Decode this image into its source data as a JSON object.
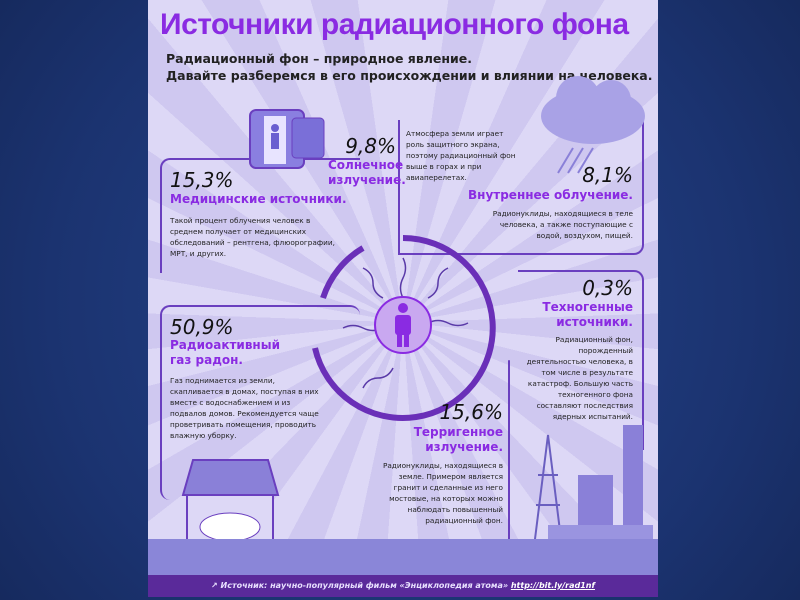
{
  "title": "Источники радиационного фона",
  "subtitle": [
    "Радиационный фон – природное явление.",
    "Давайте разберемся в его происхождении и влиянии на человека."
  ],
  "sections": {
    "medical": {
      "percent": "15,3%",
      "label": "Медицинские источники.",
      "text": "Такой процент облучения человек в среднем получает от медицинских обследований – рентгена, флюорографии, МРТ, и других."
    },
    "solar": {
      "percent": "9,8%",
      "label": "Солнечное излучение.",
      "text": "Атмосфера земли играет роль защитного экрана, поэтому радиационный фон выше в горах и при авиаперелетах."
    },
    "internal": {
      "percent": "8,1%",
      "label": "Внутреннее облучение.",
      "text": "Радионуклиды, находящиеся в теле человека, а также поступающие с водой, воздухом, пищей."
    },
    "technogenic": {
      "percent": "0,3%",
      "label": "Техногенные источники.",
      "text": "Радиационный фон, порожденный деятельностью человека, в том числе в результате катастроф. Большую часть техногенного фона составляют последствия ядерных испытаний."
    },
    "radon": {
      "percent": "50,9%",
      "label": "Радиоактивный газ радон.",
      "text": "Газ поднимается из земли, скапливается в домах, поступая в них вместе с водоснабжением и из подвалов домов. Рекомендуется чаще проветривать помещения, проводить влажную уборку."
    },
    "terrigenous": {
      "percent": "15,6%",
      "label": "Терригенное излучение.",
      "text": "Радионуклиды, находящиеся в земле. Примером является гранит и сделанные из него мостовые, на которых можно наблюдать повышенный радиационный фон."
    }
  },
  "footer": {
    "source": "Источник: научно-популярный фильм «Энциклопедия атома»",
    "link": "http://bit.ly/rad1nf"
  },
  "colors": {
    "accent": "#8a2be2",
    "slide_bg": "#1f3a7a",
    "footer_bg": "#5a2a9a"
  }
}
